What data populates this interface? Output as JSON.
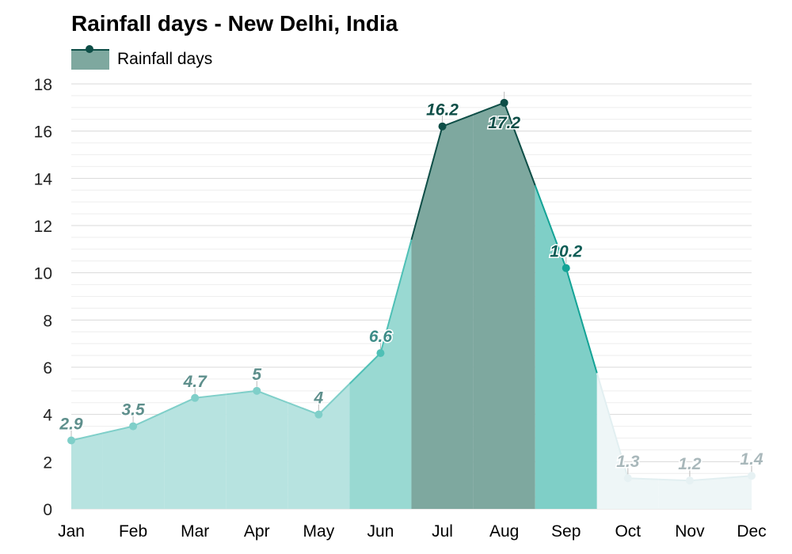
{
  "title": "Rainfall days - New Delhi, India",
  "legend": {
    "label": "Rainfall days"
  },
  "chart_data": {
    "type": "area",
    "title": "Rainfall days - New Delhi, India",
    "xlabel": "",
    "ylabel": "",
    "categories": [
      "Jan",
      "Feb",
      "Mar",
      "Apr",
      "May",
      "Jun",
      "Jul",
      "Aug",
      "Sep",
      "Oct",
      "Nov",
      "Dec"
    ],
    "series": [
      {
        "name": "Rainfall days",
        "values": [
          2.9,
          3.5,
          4.7,
          5,
          4,
          6.6,
          16.2,
          17.2,
          10.2,
          1.3,
          1.2,
          1.4
        ]
      }
    ],
    "data_labels": [
      "2.9",
      "3.5",
      "4.7",
      "5",
      "4",
      "6.6",
      "16.2",
      "17.2",
      "10.2",
      "1.3",
      "1.2",
      "1.4"
    ],
    "ylim": [
      0,
      18
    ],
    "yticks": [
      "0",
      "2",
      "4",
      "6",
      "8",
      "10",
      "12",
      "14",
      "16",
      "18"
    ],
    "grid": true,
    "legend_position": "top-left",
    "month_colors": [
      "#b7e3e0",
      "#b7e3e0",
      "#b7e3e0",
      "#b7e3e0",
      "#b7e3e0",
      "#99d9d2",
      "#7ea89f",
      "#7ea89f",
      "#7fcfc7",
      "#eef6f7",
      "#eef6f7",
      "#eef6f7"
    ],
    "line_colors": [
      "#7fcfc9",
      "#7fcfc9",
      "#7fcfc9",
      "#7fcfc9",
      "#7fcfc9",
      "#4fc0b6",
      "#0e4e47",
      "#0e4e47",
      "#14a396",
      "#e2eff1",
      "#e2eff1",
      "#e2eff1"
    ],
    "label_colors": [
      "#5e8f8c",
      "#5e8f8c",
      "#5e8f8c",
      "#5e8f8c",
      "#5e8f8c",
      "#3e8d88",
      "#0e4e47",
      "#0e4e47",
      "#0e5c55",
      "#a9b8bb",
      "#a9b8bb",
      "#a9b8bb"
    ]
  }
}
